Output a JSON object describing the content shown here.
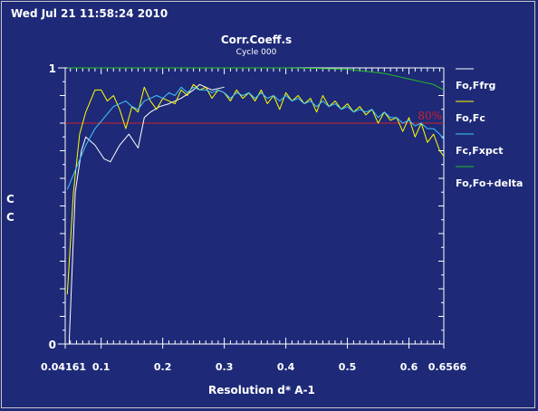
{
  "header": {
    "timestamp": "Wed Jul 21 11:58:24 2010"
  },
  "chart_data": {
    "type": "line",
    "title": "Corr.Coeff.s",
    "subtitle": "Cycle 000",
    "xlabel": "Resolution d* A-1",
    "ylabel": [
      "C",
      "C"
    ],
    "xlim": [
      0.04161,
      0.6566
    ],
    "ylim": [
      0,
      1
    ],
    "x_ticks": [
      0.04161,
      0.1,
      0.2,
      0.3,
      0.4,
      0.5,
      0.6,
      0.6566
    ],
    "x_tick_labels": [
      "0.04161",
      "0.1",
      "0.2",
      "0.3",
      "0.4",
      "0.5",
      "0.6",
      "0.6566"
    ],
    "y_ticks": [
      0,
      1
    ],
    "y_tick_labels": [
      "0",
      "1"
    ],
    "colors": {
      "background": "#1e2a78",
      "axes": "#ffffff",
      "threshold": "#d0202a"
    },
    "threshold": {
      "value": 0.8,
      "label": "80%"
    },
    "legend_position": "right",
    "series": [
      {
        "name": "Fo,Ffrg",
        "color": "#ffffff",
        "x": [
          0.048,
          0.058,
          0.068,
          0.075,
          0.09,
          0.105,
          0.115,
          0.13,
          0.145,
          0.16,
          0.17,
          0.18,
          0.195,
          0.21,
          0.23,
          0.25,
          0.26,
          0.28,
          0.3
        ],
        "y": [
          0.0,
          0.55,
          0.7,
          0.75,
          0.72,
          0.67,
          0.66,
          0.72,
          0.76,
          0.71,
          0.82,
          0.84,
          0.86,
          0.87,
          0.89,
          0.92,
          0.94,
          0.92,
          0.93
        ]
      },
      {
        "name": "Fo,Fc",
        "color": "#ffff00",
        "x": [
          0.045,
          0.055,
          0.065,
          0.075,
          0.09,
          0.1,
          0.11,
          0.12,
          0.13,
          0.14,
          0.15,
          0.16,
          0.17,
          0.18,
          0.19,
          0.2,
          0.21,
          0.22,
          0.23,
          0.24,
          0.25,
          0.26,
          0.27,
          0.28,
          0.29,
          0.3,
          0.31,
          0.32,
          0.33,
          0.34,
          0.35,
          0.36,
          0.37,
          0.38,
          0.39,
          0.4,
          0.41,
          0.42,
          0.43,
          0.44,
          0.45,
          0.46,
          0.47,
          0.48,
          0.49,
          0.5,
          0.51,
          0.52,
          0.53,
          0.54,
          0.55,
          0.56,
          0.57,
          0.58,
          0.59,
          0.6,
          0.61,
          0.62,
          0.63,
          0.64,
          0.65,
          0.6566
        ],
        "y": [
          0.18,
          0.55,
          0.76,
          0.84,
          0.92,
          0.92,
          0.88,
          0.9,
          0.85,
          0.78,
          0.86,
          0.84,
          0.93,
          0.88,
          0.85,
          0.89,
          0.88,
          0.87,
          0.92,
          0.9,
          0.94,
          0.92,
          0.93,
          0.89,
          0.92,
          0.91,
          0.88,
          0.92,
          0.89,
          0.91,
          0.88,
          0.92,
          0.87,
          0.9,
          0.85,
          0.91,
          0.88,
          0.9,
          0.87,
          0.89,
          0.84,
          0.9,
          0.86,
          0.88,
          0.85,
          0.87,
          0.84,
          0.86,
          0.83,
          0.85,
          0.8,
          0.84,
          0.81,
          0.82,
          0.77,
          0.82,
          0.75,
          0.8,
          0.73,
          0.76,
          0.7,
          0.68
        ]
      },
      {
        "name": "Fc,Fxpct",
        "color": "#40c8ff",
        "x": [
          0.045,
          0.06,
          0.075,
          0.09,
          0.105,
          0.12,
          0.13,
          0.14,
          0.15,
          0.16,
          0.17,
          0.18,
          0.19,
          0.2,
          0.21,
          0.22,
          0.23,
          0.24,
          0.25,
          0.26,
          0.27,
          0.28,
          0.29,
          0.3,
          0.31,
          0.32,
          0.33,
          0.34,
          0.35,
          0.36,
          0.37,
          0.38,
          0.39,
          0.4,
          0.41,
          0.42,
          0.43,
          0.44,
          0.45,
          0.46,
          0.47,
          0.48,
          0.49,
          0.5,
          0.51,
          0.52,
          0.53,
          0.54,
          0.55,
          0.56,
          0.57,
          0.58,
          0.59,
          0.6,
          0.61,
          0.62,
          0.63,
          0.64,
          0.65,
          0.6566
        ],
        "y": [
          0.56,
          0.64,
          0.72,
          0.78,
          0.82,
          0.86,
          0.87,
          0.88,
          0.86,
          0.85,
          0.88,
          0.89,
          0.9,
          0.89,
          0.91,
          0.9,
          0.93,
          0.91,
          0.93,
          0.92,
          0.92,
          0.91,
          0.92,
          0.91,
          0.89,
          0.91,
          0.9,
          0.91,
          0.89,
          0.91,
          0.89,
          0.9,
          0.88,
          0.9,
          0.88,
          0.89,
          0.87,
          0.88,
          0.86,
          0.88,
          0.86,
          0.87,
          0.85,
          0.86,
          0.84,
          0.85,
          0.84,
          0.85,
          0.82,
          0.84,
          0.82,
          0.82,
          0.8,
          0.81,
          0.79,
          0.8,
          0.78,
          0.78,
          0.76,
          0.74
        ]
      },
      {
        "name": "Fo,Fo+delta",
        "color": "#20c020",
        "x": [
          0.045,
          0.08,
          0.1,
          0.15,
          0.2,
          0.25,
          0.3,
          0.35,
          0.4,
          0.45,
          0.5,
          0.52,
          0.54,
          0.56,
          0.58,
          0.6,
          0.62,
          0.64,
          0.6566
        ],
        "y": [
          1.0,
          1.0,
          1.0,
          1.0,
          1.0,
          1.0,
          1.0,
          1.0,
          1.0,
          0.998,
          0.995,
          0.99,
          0.985,
          0.98,
          0.97,
          0.96,
          0.95,
          0.94,
          0.92
        ]
      }
    ]
  }
}
